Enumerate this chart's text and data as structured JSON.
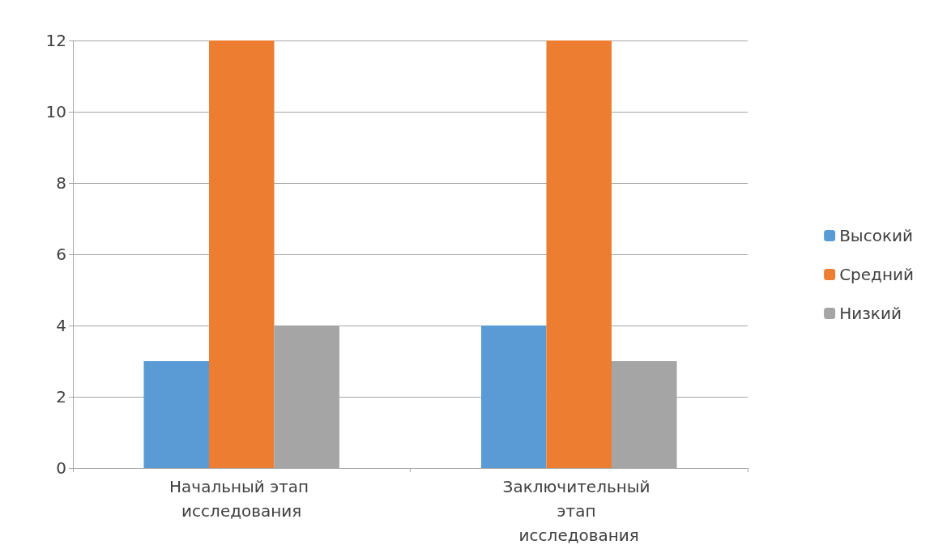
{
  "chart_data": {
    "type": "bar",
    "categories": [
      "Начальный этап исследования",
      "Заключительный этап исследования"
    ],
    "series": [
      {
        "name": "Высокий",
        "color": "#5b9bd5",
        "values": [
          3,
          4
        ]
      },
      {
        "name": "Средний",
        "color": "#ed7d31",
        "values": [
          12,
          12
        ]
      },
      {
        "name": "Низкий",
        "color": "#a5a5a5",
        "values": [
          4,
          3
        ]
      }
    ],
    "ylim": [
      0,
      12
    ],
    "yticks": [
      0,
      2,
      4,
      6,
      8,
      10,
      12
    ],
    "grid": "y",
    "legend": "right"
  }
}
